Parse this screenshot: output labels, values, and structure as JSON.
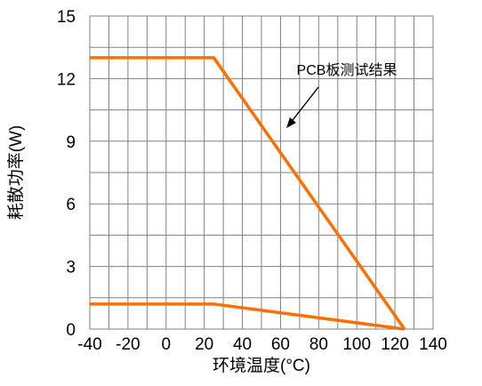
{
  "chart_data": {
    "type": "line",
    "title": "",
    "xlabel": "环境温度(°C)",
    "ylabel": "耗散功率(W)",
    "xlim": [
      -40,
      140
    ],
    "ylim": [
      0,
      15
    ],
    "grid": true,
    "x_ticks": [
      -40,
      -20,
      0,
      20,
      40,
      60,
      80,
      100,
      120,
      140
    ],
    "y_ticks": [
      0,
      3,
      6,
      9,
      12,
      15
    ],
    "x_tick_labels": [
      "-40",
      "-20",
      "0",
      "20",
      "40",
      "60",
      "80",
      "100",
      "120",
      "140"
    ],
    "y_tick_labels": [
      "0",
      "3",
      "6",
      "9",
      "12",
      "15"
    ],
    "series": [
      {
        "x": [
          -40,
          25,
          125
        ],
        "y": [
          13,
          13,
          0
        ]
      },
      {
        "x": [
          -40,
          25,
          125
        ],
        "y": [
          1.2,
          1.2,
          0
        ]
      }
    ],
    "annotations": [
      {
        "text": "PCB板测试结果",
        "target": [
          56,
          9.1
        ]
      }
    ],
    "colors": {
      "line": "#ff7000",
      "grid": "#808080",
      "axis": "#000000"
    }
  }
}
